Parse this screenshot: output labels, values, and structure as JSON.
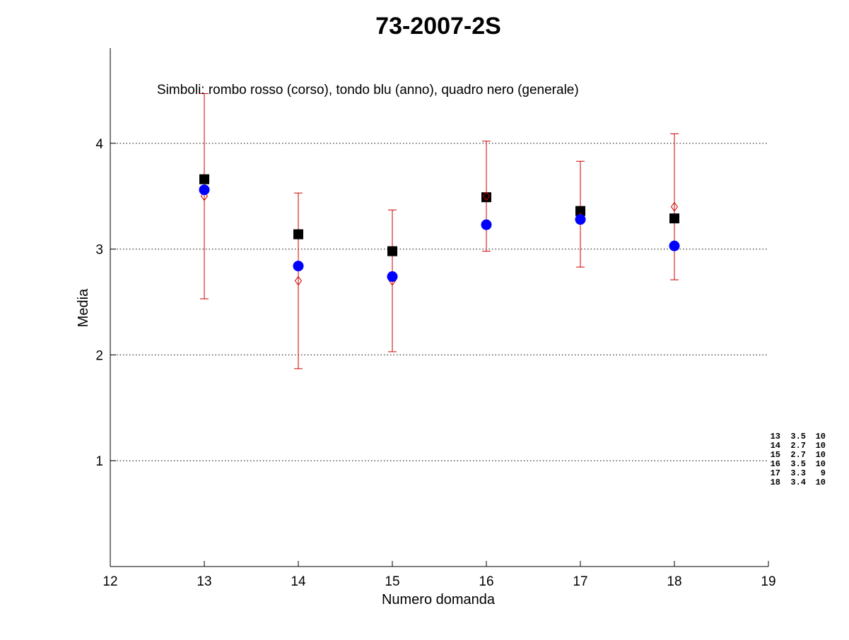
{
  "chart_data": {
    "type": "scatter",
    "title": "73-2007-2S",
    "xlabel": "Numero domanda",
    "ylabel": "Media",
    "xlim": [
      12,
      19
    ],
    "ylim": [
      0,
      4.9
    ],
    "x_ticks": [
      "12",
      "13",
      "14",
      "15",
      "16",
      "17",
      "18",
      "19"
    ],
    "y_ticks": [
      "1",
      "2",
      "3",
      "4"
    ],
    "grid": "horizontal dotted",
    "annotation": "Simboli: rombo rosso (corso), tondo blu (anno), quadro nero (generale)",
    "x": [
      13,
      14,
      15,
      16,
      17,
      18
    ],
    "series": [
      {
        "name": "corso",
        "marker": "diamond",
        "color": "#cc0000",
        "values": [
          3.5,
          2.7,
          2.7,
          3.5,
          3.3,
          3.4
        ],
        "error_low": [
          2.53,
          1.87,
          2.03,
          2.98,
          2.83,
          2.71
        ],
        "error_high": [
          4.47,
          3.53,
          3.37,
          4.02,
          3.83,
          4.09
        ]
      },
      {
        "name": "anno",
        "marker": "circle",
        "color": "#0000ff",
        "values": [
          3.56,
          2.84,
          2.74,
          3.23,
          3.28,
          3.03
        ]
      },
      {
        "name": "generale",
        "marker": "square",
        "color": "#000000",
        "values": [
          3.66,
          3.14,
          2.98,
          3.49,
          3.36,
          3.29
        ]
      }
    ],
    "side_table": [
      [
        "13",
        "3.5",
        "10"
      ],
      [
        "14",
        "2.7",
        "10"
      ],
      [
        "15",
        "2.7",
        "10"
      ],
      [
        "16",
        "3.5",
        "10"
      ],
      [
        "17",
        "3.3",
        "9"
      ],
      [
        "18",
        "3.4",
        "10"
      ]
    ]
  }
}
